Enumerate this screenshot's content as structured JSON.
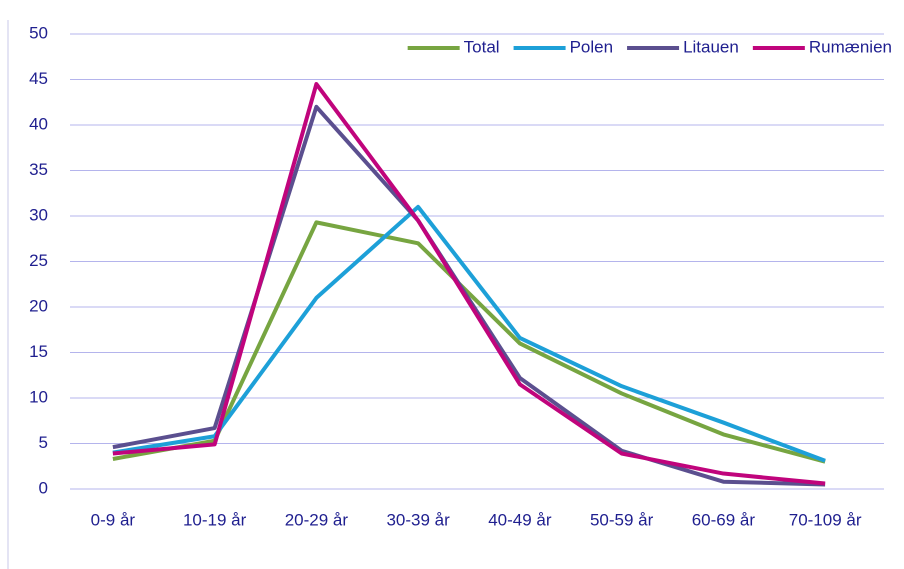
{
  "chart_data": {
    "type": "line",
    "categories": [
      "0-9 år",
      "10-19 år",
      "20-29 år",
      "30-39 år",
      "40-49 år",
      "50-59 år",
      "60-69 år",
      "70-109 år"
    ],
    "series": [
      {
        "name": "Total",
        "color": "#77a541",
        "values": [
          3.3,
          5.3,
          29.3,
          27,
          16,
          10.5,
          6,
          3
        ]
      },
      {
        "name": "Polen",
        "color": "#1da0d8",
        "values": [
          4,
          5.8,
          21,
          31,
          16.6,
          11.3,
          7.3,
          3.1
        ]
      },
      {
        "name": "Litauen",
        "color": "#5b4f8f",
        "values": [
          4.6,
          6.7,
          42,
          29.5,
          12.2,
          4.2,
          0.8,
          0.5
        ]
      },
      {
        "name": "Rumænien",
        "color": "#c0047c",
        "values": [
          3.9,
          4.9,
          44.5,
          29.5,
          11.5,
          3.9,
          1.7,
          0.6
        ]
      }
    ],
    "ylim": [
      0,
      50
    ],
    "yticks": [
      0,
      5,
      10,
      15,
      20,
      25,
      30,
      35,
      40,
      45,
      50
    ],
    "grid": true,
    "legend": "top-right"
  }
}
